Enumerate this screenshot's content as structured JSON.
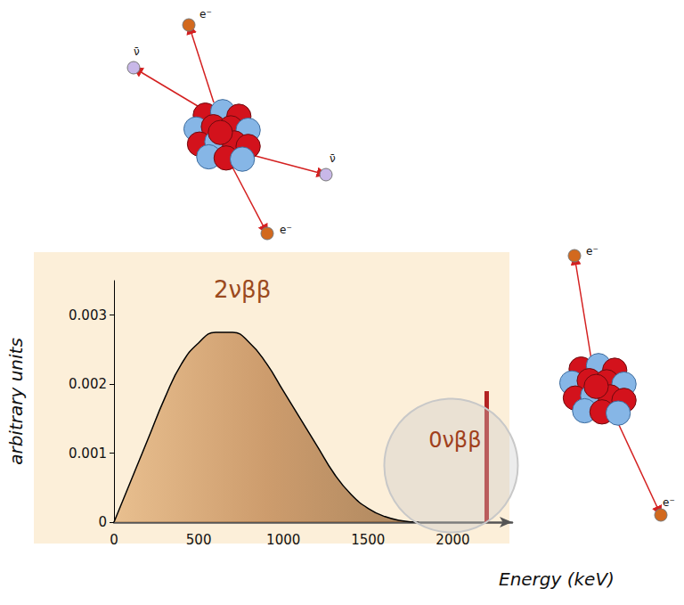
{
  "chart_data": {
    "type": "line",
    "xlabel": "Energy (keV)",
    "ylabel": "arbitrary units",
    "xlim": [
      0,
      2350
    ],
    "xticks": [
      0,
      500,
      1000,
      1500,
      2000
    ],
    "ylim": [
      0,
      0.0035
    ],
    "yticks": [
      0,
      0.001,
      0.002,
      0.003
    ],
    "grid": false,
    "series": [
      {
        "name": "2νββ",
        "type": "line",
        "color": "#b9793f",
        "x": [
          0,
          100,
          200,
          300,
          400,
          500,
          600,
          700,
          800,
          900,
          1000,
          1100,
          1200,
          1300,
          1400,
          1500,
          1600,
          1700,
          1800
        ],
        "values": [
          0,
          0.0006,
          0.0012,
          0.0018,
          0.0023,
          0.0026,
          0.00275,
          0.00275,
          0.0026,
          0.0023,
          0.0019,
          0.0015,
          0.0011,
          0.0007,
          0.0004,
          0.0002,
          8e-05,
          2e-05,
          0
        ]
      },
      {
        "name": "0νββ",
        "type": "bar",
        "color": "#b22222",
        "x": [
          2200
        ],
        "values": [
          0.0019
        ]
      }
    ]
  },
  "diagram": {
    "particles": [
      "e⁻",
      "ν̄",
      "ν̄",
      "e⁻",
      "e⁻",
      "e⁻"
    ]
  }
}
